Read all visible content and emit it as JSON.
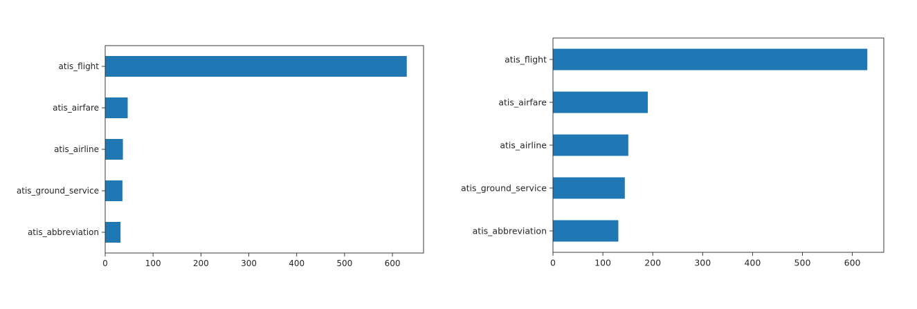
{
  "accent_color": "#1f77b4",
  "chart_data": [
    {
      "type": "bar",
      "orientation": "horizontal",
      "categories": [
        "atis_flight",
        "atis_airfare",
        "atis_airline",
        "atis_ground_service",
        "atis_abbreviation"
      ],
      "values": [
        630,
        47,
        37,
        36,
        32
      ],
      "xlim": [
        0,
        665
      ],
      "xticks": [
        0,
        100,
        200,
        300,
        400,
        500,
        600
      ],
      "title": "",
      "xlabel": "",
      "ylabel": "",
      "grid": false,
      "legend": "none"
    },
    {
      "type": "bar",
      "orientation": "horizontal",
      "categories": [
        "atis_flight",
        "atis_airfare",
        "atis_airline",
        "atis_ground_service",
        "atis_abbreviation"
      ],
      "values": [
        630,
        190,
        151,
        144,
        131
      ],
      "xlim": [
        0,
        663
      ],
      "xticks": [
        0,
        100,
        200,
        300,
        400,
        500,
        600
      ],
      "title": "",
      "xlabel": "",
      "ylabel": "",
      "grid": false,
      "legend": "none"
    }
  ]
}
